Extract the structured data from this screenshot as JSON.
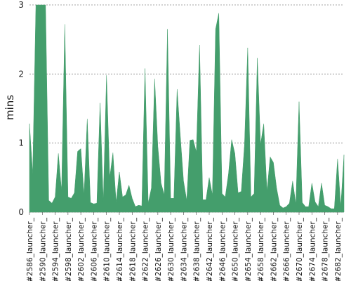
{
  "chart_data": {
    "type": "area",
    "ylabel": "mins",
    "xlabel": "",
    "ylim": [
      0,
      3
    ],
    "yticks": [
      0,
      1,
      2,
      3
    ],
    "grid": true,
    "legend": "none",
    "color": "#449e6c",
    "grid_color": "#888888",
    "x_tick_labels": [
      "#2586_launcher_",
      "#2590_launcher_",
      "#2594_launcher_",
      "#2598_launcher_",
      "#2602_launcher_",
      "#2606_launcher_",
      "#2610_launcher_",
      "#2614_launcher_",
      "#2618_launcher_",
      "#2622_launcher_",
      "#2626_launcher_",
      "#2630_launcher_",
      "#2634_launcher_",
      "#2638_launcher_",
      "#2642_launcher_",
      "#2646_launcher_",
      "#2650_launcher_",
      "#2654_launcher_",
      "#2658_launcher_",
      "#2662_launcher_",
      "#2666_launcher_",
      "#2670_launcher_",
      "#2674_launcher_",
      "#2678_launcher_",
      "#2682_launcher_"
    ],
    "x": [
      2586,
      2587,
      2588,
      2589,
      2590,
      2591,
      2592,
      2593,
      2594,
      2595,
      2596,
      2597,
      2598,
      2599,
      2600,
      2601,
      2602,
      2603,
      2604,
      2605,
      2606,
      2607,
      2608,
      2609,
      2610,
      2611,
      2612,
      2613,
      2614,
      2615,
      2616,
      2617,
      2618,
      2619,
      2620,
      2621,
      2622,
      2623,
      2624,
      2625,
      2626,
      2627,
      2628,
      2629,
      2630,
      2631,
      2632,
      2633,
      2634,
      2635,
      2636,
      2637,
      2638,
      2639,
      2640,
      2641,
      2642,
      2643,
      2644,
      2645,
      2646,
      2647,
      2648,
      2649,
      2650,
      2651,
      2652,
      2653,
      2654,
      2655,
      2656,
      2657,
      2658,
      2659,
      2660,
      2661,
      2662,
      2663,
      2664,
      2665,
      2666,
      2667,
      2668,
      2669,
      2670,
      2671,
      2672,
      2673,
      2674,
      2675,
      2676,
      2677,
      2678,
      2679,
      2680,
      2681,
      2682,
      2683,
      2684
    ],
    "values": [
      1.28,
      0.55,
      3.0,
      3.0,
      3.0,
      3.0,
      0.17,
      0.13,
      0.22,
      0.85,
      0.3,
      2.72,
      0.22,
      0.2,
      0.28,
      0.88,
      0.92,
      0.25,
      1.35,
      0.14,
      0.12,
      0.13,
      1.58,
      0.15,
      1.98,
      0.5,
      0.86,
      0.14,
      0.58,
      0.22,
      0.25,
      0.39,
      0.2,
      0.08,
      0.1,
      0.09,
      2.08,
      0.13,
      0.35,
      1.93,
      0.95,
      0.42,
      0.25,
      2.65,
      0.2,
      0.2,
      1.78,
      1.1,
      0.45,
      0.17,
      1.04,
      1.05,
      0.87,
      2.42,
      0.18,
      0.18,
      0.5,
      0.25,
      2.65,
      2.88,
      0.27,
      0.22,
      0.55,
      1.05,
      0.85,
      0.28,
      0.3,
      0.98,
      2.38,
      0.22,
      0.27,
      2.23,
      0.98,
      1.28,
      0.3,
      0.8,
      0.72,
      0.35,
      0.1,
      0.06,
      0.08,
      0.13,
      0.45,
      0.12,
      1.6,
      0.14,
      0.08,
      0.08,
      0.42,
      0.15,
      0.08,
      0.42,
      0.1,
      0.08,
      0.05,
      0.05,
      0.77,
      0.08,
      0.83
    ]
  }
}
